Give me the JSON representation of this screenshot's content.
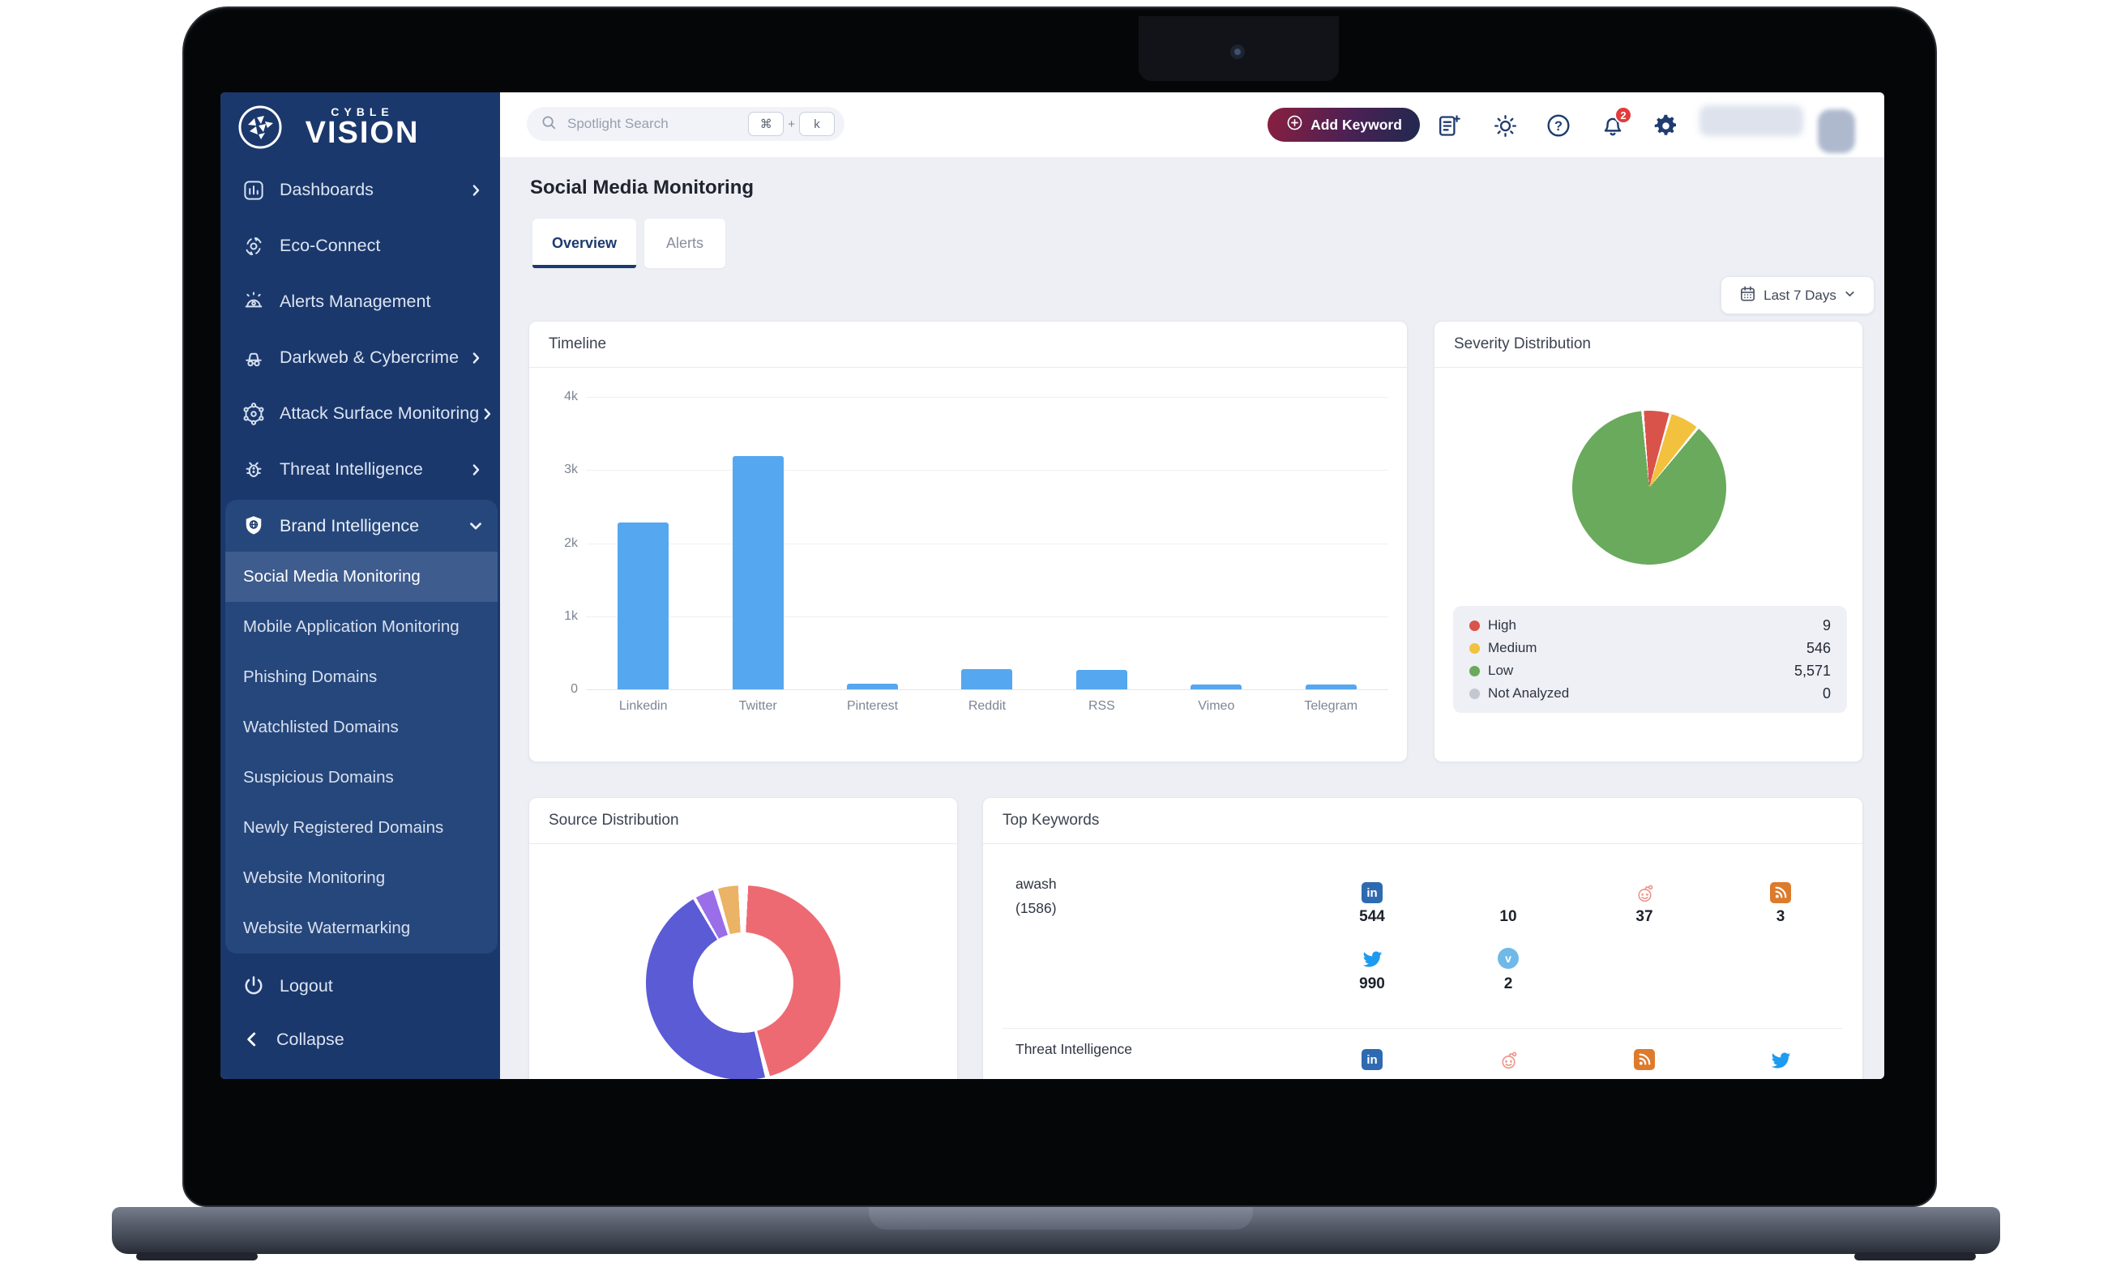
{
  "brand": {
    "name_top": "CYBLE",
    "name_bottom": "VISION"
  },
  "sidebar": {
    "items": [
      {
        "label": "Dashboards",
        "icon": "dashboards-icon",
        "chevron": "right"
      },
      {
        "label": "Eco-Connect",
        "icon": "eco-connect-icon",
        "chevron": ""
      },
      {
        "label": "Alerts Management",
        "icon": "alerts-management-icon",
        "chevron": ""
      },
      {
        "label": "Darkweb & Cybercrime",
        "icon": "darkweb-icon",
        "chevron": "right"
      },
      {
        "label": "Attack Surface Monitoring",
        "icon": "attack-surface-icon",
        "chevron": "right"
      },
      {
        "label": "Threat Intelligence",
        "icon": "threat-intelligence-icon",
        "chevron": "right"
      }
    ],
    "group": {
      "label": "Brand Intelligence",
      "icon": "brand-intelligence-icon",
      "chevron": "down",
      "selected": "Social Media Monitoring",
      "items": [
        "Social Media Monitoring",
        "Mobile Application Monitoring",
        "Phishing Domains",
        "Watchlisted Domains",
        "Suspicious Domains",
        "Newly Registered Domains",
        "Website Monitoring",
        "Website Watermarking"
      ]
    },
    "footer": [
      {
        "label": "Logout",
        "icon": "logout-icon"
      },
      {
        "label": "Collapse",
        "icon": "collapse-icon"
      }
    ]
  },
  "topbar": {
    "search": {
      "placeholder": "Spotlight Search",
      "shortcut_keys": [
        "⌘",
        "k"
      ],
      "separator": "+"
    },
    "add_keyword_label": "Add Keyword",
    "notification_count": "2"
  },
  "page": {
    "title": "Social Media Monitoring",
    "tabs": [
      {
        "label": "Overview",
        "active": true
      },
      {
        "label": "Alerts",
        "active": false
      }
    ],
    "date_filter": "Last 7 Days"
  },
  "cards": {
    "timeline_title": "Timeline",
    "severity_title": "Severity Distribution",
    "source_title": "Source Distribution",
    "keywords_title": "Top Keywords"
  },
  "chart_data": [
    {
      "type": "bar",
      "title": "Timeline",
      "categories": [
        "Linkedin",
        "Twitter",
        "Pinterest",
        "Reddit",
        "RSS",
        "Vimeo",
        "Telegram"
      ],
      "values": [
        2280,
        3190,
        75,
        280,
        265,
        70,
        70
      ],
      "xlabel": "",
      "ylabel": "",
      "ylim": [
        0,
        4000
      ],
      "ytick_labels": [
        "4k",
        "3k",
        "2k",
        "1k",
        "0"
      ],
      "grid": true,
      "bar_color": "#55a7f0"
    },
    {
      "type": "pie",
      "title": "Severity Distribution",
      "labels": [
        "High",
        "Medium",
        "Low",
        "Not Analyzed"
      ],
      "values": [
        9,
        546,
        5571,
        0
      ],
      "display_values": [
        "9",
        "546",
        "5,571",
        "0"
      ],
      "colors": [
        "#d9534b",
        "#f2c13d",
        "#69aa5c",
        "#c2c7d0"
      ],
      "legend_position": "bottom",
      "display": {
        "from_deg": -4,
        "gap_deg": 2,
        "slice_angles_deg": [
          19,
          21,
          314
        ]
      }
    },
    {
      "type": "donut",
      "title": "Source Distribution",
      "segments": [
        {
          "color": "#ed6a72",
          "percent": 46
        },
        {
          "color": "#5b5bd6",
          "percent": 47
        },
        {
          "color": "#9a6ee8",
          "percent": 3
        },
        {
          "color": "#eab366",
          "percent": 3.5
        }
      ],
      "display_arcs_deg": [
        [
          3,
          164
        ],
        [
          167,
          329
        ],
        [
          331,
          342
        ],
        [
          345,
          357
        ]
      ]
    }
  ],
  "keywords": [
    {
      "name": "awash",
      "count": "(1586)",
      "sources": [
        {
          "icon": "linkedin-icon",
          "value": "544"
        },
        {
          "icon": "blank-icon",
          "value": "10"
        },
        {
          "icon": "reddit-icon",
          "value": "37"
        },
        {
          "icon": "rss-icon",
          "value": "3"
        },
        {
          "icon": "twitter-icon",
          "value": "990"
        },
        {
          "icon": "vimeo-icon",
          "value": "2"
        }
      ]
    },
    {
      "name": "Threat Intelligence",
      "count": "",
      "sources": [
        {
          "icon": "linkedin-icon",
          "value": ""
        },
        {
          "icon": "reddit-icon",
          "value": ""
        },
        {
          "icon": "rss-icon",
          "value": ""
        },
        {
          "icon": "twitter-icon",
          "value": ""
        }
      ]
    }
  ]
}
